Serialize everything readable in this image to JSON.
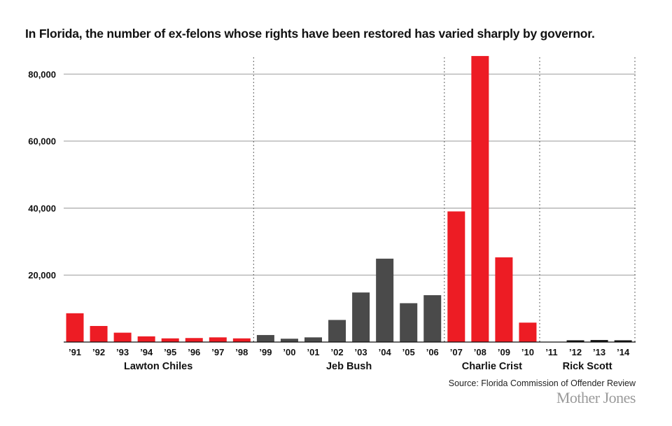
{
  "chart_data": {
    "type": "bar",
    "title": "In Florida, the number of ex-felons whose rights have been restored has varied sharply by governor.",
    "xlabel": "",
    "ylabel": "",
    "ylim": [
      0,
      85000
    ],
    "y_ticks": [
      20000,
      40000,
      60000,
      80000
    ],
    "y_tick_labels": [
      "20,000",
      "40,000",
      "60,000",
      "80,000"
    ],
    "grid": true,
    "categories": [
      "’91",
      "’92",
      "’93",
      "’94",
      "’95",
      "’96",
      "’97",
      "’98",
      "’99",
      "’00",
      "’01",
      "’02",
      "’03",
      "’04",
      "’05",
      "’06",
      "’07",
      "’08",
      "’09",
      "’10",
      "’11",
      "’12",
      "’13",
      "’14"
    ],
    "values": [
      8600,
      4800,
      2800,
      1700,
      1100,
      1200,
      1400,
      1100,
      2100,
      1000,
      1400,
      6600,
      14800,
      24900,
      11600,
      14000,
      39000,
      85400,
      25300,
      5800,
      0,
      300,
      600,
      500
    ],
    "governors": [
      {
        "name": "Lawton Chiles",
        "years": [
          "’91",
          "’92",
          "’93",
          "’94",
          "’95",
          "’96",
          "’97",
          "’98"
        ],
        "color": "#ed1c24"
      },
      {
        "name": "Jeb Bush",
        "years": [
          "’99",
          "’00",
          "’01",
          "’02",
          "’03",
          "’04",
          "’05",
          "’06"
        ],
        "color": "#4a4a4a"
      },
      {
        "name": "Charlie Crist",
        "years": [
          "’07",
          "’08",
          "’09",
          "’10"
        ],
        "color": "#ed1c24"
      },
      {
        "name": "Rick Scott",
        "years": [
          "’11",
          "’12",
          "’13",
          "’14"
        ],
        "color": "#111111"
      }
    ],
    "source": "Source: Florida Commission of Offender Review"
  },
  "branding": {
    "logo_text": "Mother Jones"
  }
}
